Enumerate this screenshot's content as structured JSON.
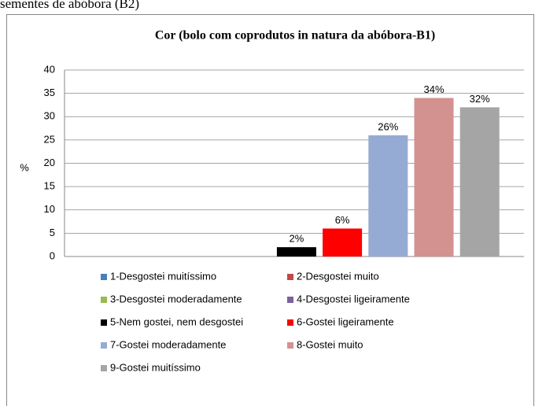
{
  "caption": "sementes de abóbora (B2)",
  "chart_data": {
    "type": "bar",
    "title": "Cor (bolo com coprodutos in natura da abóbora-B1)",
    "ylabel": "%",
    "categories": [
      "1-Desgostei muitíssimo",
      "2-Desgostei muito",
      "3-Desgostei moderadamente",
      "4-Desgostei ligeiramente",
      "5-Nem gostei, nem desgostei",
      "6-Gostei ligeiramente",
      "7-Gostei moderadamente",
      "8-Gostei muito",
      "9-Gostei muitíssimo"
    ],
    "values": [
      0,
      0,
      0,
      0,
      2,
      6,
      26,
      34,
      32
    ],
    "value_labels": [
      null,
      null,
      null,
      null,
      "2%",
      "6%",
      "26%",
      "34%",
      "32%"
    ],
    "colors": [
      "#4a7ebb",
      "#be4b48",
      "#98b954",
      "#7d60a0",
      "#000000",
      "#ff0000",
      "#95abd3",
      "#d39190",
      "#a5a5a5"
    ],
    "ylim": [
      0,
      40
    ],
    "yticks": [
      0,
      5,
      10,
      15,
      20,
      25,
      30,
      35,
      40
    ],
    "grid": true
  }
}
